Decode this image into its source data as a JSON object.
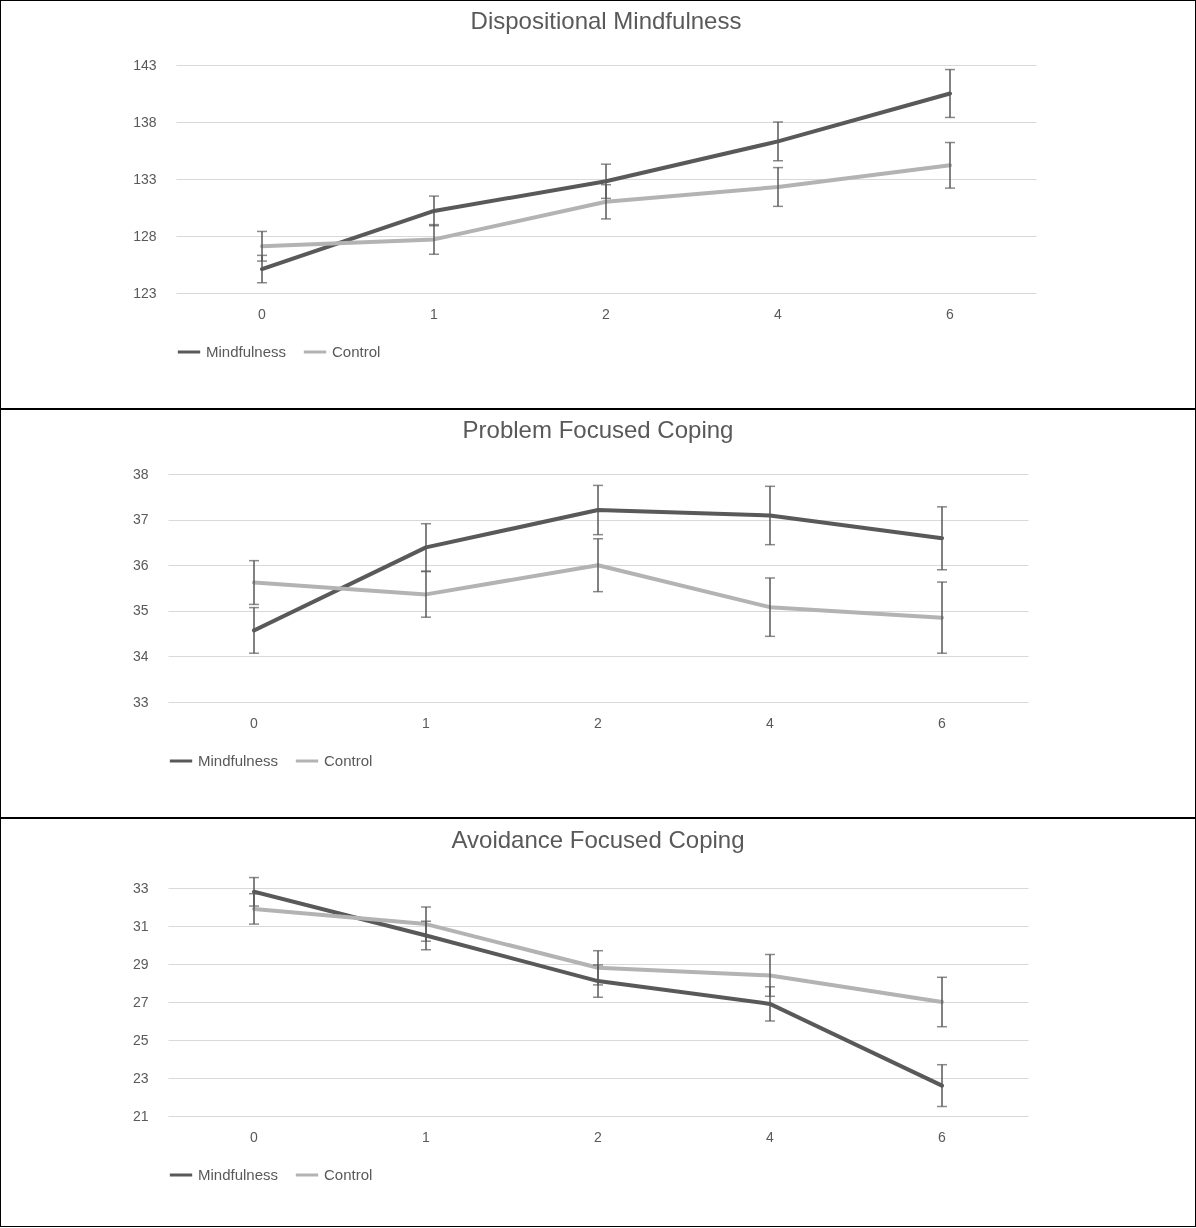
{
  "chart_data": [
    {
      "type": "line",
      "title": "Dispositional Mindfulness",
      "categories": [
        "0",
        "1",
        "2",
        "4",
        "6"
      ],
      "ylim": [
        123,
        143
      ],
      "yticks": [
        123,
        128,
        133,
        138,
        143
      ],
      "grid": "y",
      "legend": "bottom",
      "series": [
        {
          "name": "Mindfulness",
          "color": "#595959",
          "values": [
            125.1,
            130.2,
            132.8,
            136.3,
            140.5
          ],
          "errors": [
            1.2,
            1.3,
            1.5,
            1.7,
            2.1
          ]
        },
        {
          "name": "Control",
          "color": "#b3b3b3",
          "values": [
            127.1,
            127.7,
            131.0,
            132.3,
            134.2
          ],
          "errors": [
            1.3,
            1.3,
            1.5,
            1.7,
            2.0
          ]
        }
      ]
    },
    {
      "type": "line",
      "title": "Problem Focused Coping",
      "categories": [
        "0",
        "1",
        "2",
        "4",
        "6"
      ],
      "ylim": [
        33,
        38
      ],
      "yticks": [
        33,
        34,
        35,
        36,
        37,
        38
      ],
      "grid": "y",
      "legend": "bottom",
      "series": [
        {
          "name": "Mindfulness",
          "color": "#595959",
          "values": [
            34.57,
            36.39,
            37.21,
            37.09,
            36.59
          ],
          "errors": [
            0.5,
            0.52,
            0.54,
            0.64,
            0.69
          ]
        },
        {
          "name": "Control",
          "color": "#b3b3b3",
          "values": [
            35.62,
            35.36,
            36.0,
            35.08,
            34.85
          ],
          "errors": [
            0.48,
            0.5,
            0.58,
            0.64,
            0.78
          ]
        }
      ]
    },
    {
      "type": "line",
      "title": "Avoidance Focused Coping",
      "categories": [
        "0",
        "1",
        "2",
        "4",
        "6"
      ],
      "ylim": [
        21,
        33
      ],
      "yticks": [
        21,
        23,
        25,
        27,
        29,
        31,
        33
      ],
      "grid": "y",
      "legend": "bottom",
      "series": [
        {
          "name": "Mindfulness",
          "color": "#595959",
          "values": [
            32.8,
            30.5,
            28.1,
            26.9,
            22.6
          ],
          "errors": [
            0.75,
            0.75,
            0.85,
            0.9,
            1.1
          ]
        },
        {
          "name": "Control",
          "color": "#b3b3b3",
          "values": [
            31.9,
            31.1,
            28.8,
            28.4,
            27.0
          ],
          "errors": [
            0.8,
            0.9,
            0.9,
            1.1,
            1.3
          ]
        }
      ]
    }
  ]
}
